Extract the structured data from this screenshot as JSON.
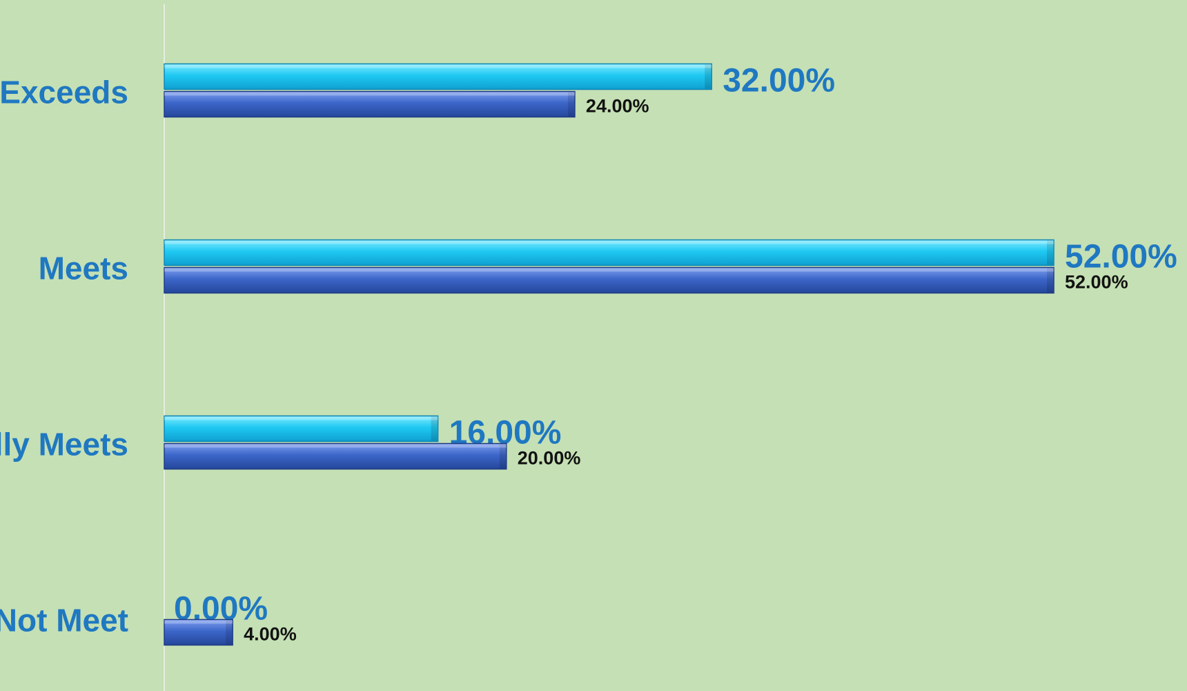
{
  "chart_data": {
    "type": "bar",
    "orientation": "horizontal",
    "categories": [
      "Exceeds",
      "Meets",
      "Partially Meets",
      "Does Not Meet"
    ],
    "series": [
      {
        "values": [
          32,
          52,
          16,
          0
        ],
        "value_labels": [
          "32.00%",
          "52.00%",
          "16.00%",
          "0.00%"
        ],
        "color": "#1ec8f0"
      },
      {
        "values": [
          24,
          52,
          20,
          4
        ],
        "value_labels": [
          "24.00%",
          "52.00%",
          "20.00%",
          "4.00%"
        ],
        "color": "#3b66c9"
      }
    ],
    "xlim": [
      0,
      52
    ],
    "grid": false,
    "legend": "none"
  },
  "colors": {
    "background": "#c5e0b4",
    "category_text": "#1f78c1",
    "series1_label_text": "#1f78c1",
    "series2_label_text": "#111111",
    "axis_line": "#e6eedf"
  }
}
